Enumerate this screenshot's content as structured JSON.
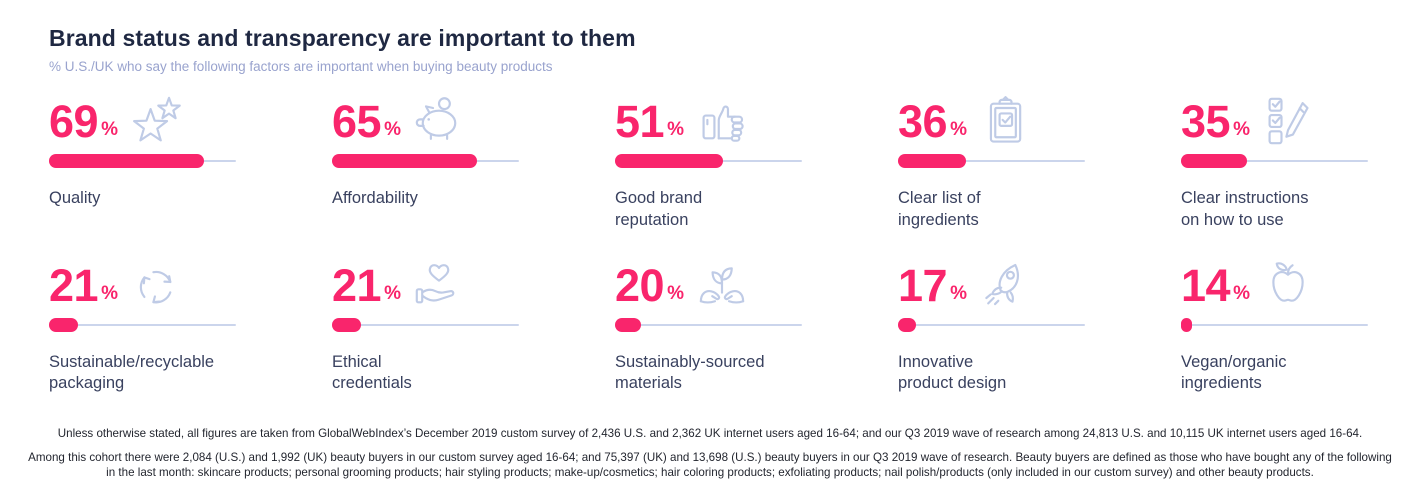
{
  "chart_data": {
    "type": "bar",
    "title": "Brand status and transparency are important to them",
    "subtitle": "% U.S./UK who say the following factors are important when buying beauty products",
    "unit": "%",
    "xlim": [
      0,
      100
    ],
    "legend": "none",
    "categories": [
      "Quality",
      "Affordability",
      "Good brand reputation",
      "Clear list of ingredients",
      "Clear instructions on how to use",
      "Sustainable/recyclable packaging",
      "Ethical credentials",
      "Sustainably-sourced materials",
      "Innovative product design",
      "Vegan/organic ingredients"
    ],
    "values": [
      69,
      65,
      51,
      36,
      35,
      21,
      21,
      20,
      17,
      14
    ],
    "items": [
      {
        "label": "Quality",
        "value": 69,
        "icon": "stars"
      },
      {
        "label": "Affordability",
        "value": 65,
        "icon": "piggy-bank"
      },
      {
        "label": "Good brand\nreputation",
        "value": 51,
        "icon": "thumbs-up"
      },
      {
        "label": "Clear list of\ningredients",
        "value": 36,
        "icon": "clipboard-check"
      },
      {
        "label": "Clear instructions\non how to use",
        "value": 35,
        "icon": "checklist-pencil"
      },
      {
        "label": "Sustainable/recyclable\npackaging",
        "value": 21,
        "icon": "recycle"
      },
      {
        "label": "Ethical\ncredentials",
        "value": 21,
        "icon": "hand-heart"
      },
      {
        "label": "Sustainably-sourced\nmaterials",
        "value": 20,
        "icon": "hands-plant"
      },
      {
        "label": "Innovative\nproduct design",
        "value": 17,
        "icon": "rocket"
      },
      {
        "label": "Vegan/organic\ningredients",
        "value": 14,
        "icon": "apple"
      }
    ]
  },
  "colors": {
    "accent_pink": "#F9256C",
    "icon_blue": "#BFCBE6",
    "track_blue": "#CBD5EC",
    "title_navy": "#1F2842",
    "label_navy": "#39415F",
    "subtitle_blue": "#99A3CE"
  },
  "footnotes": {
    "line1": "Unless otherwise stated, all figures are taken from GlobalWebIndex’s December 2019 custom survey of 2,436 U.S. and 2,362 UK internet users aged 16-64; and our Q3 2019 wave of research among 24,813 U.S. and 10,115 UK internet users aged 16-64.",
    "line2": "Among this cohort there were 2,084 (U.S.) and 1,992 (UK) beauty buyers in our custom survey aged 16-64; and 75,397 (UK) and 13,698 (U.S.) beauty buyers in our Q3 2019 wave of research. Beauty buyers are defined as those who have bought any of the following in the last month: skincare products; personal grooming products; hair styling products; make-up/cosmetics; hair coloring products; exfoliating products; nail polish/products (only included in our custom survey) and other beauty products."
  }
}
